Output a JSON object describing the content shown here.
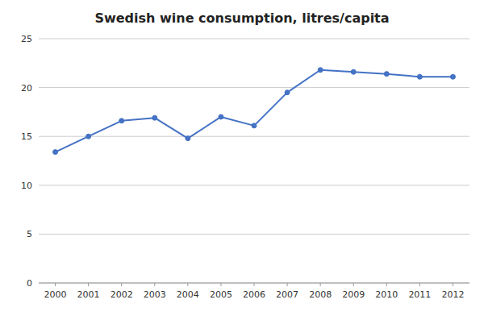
{
  "chart_data": {
    "type": "line",
    "title": "Swedish wine consumption, litres/capita",
    "x": [
      2000,
      2001,
      2002,
      2003,
      2004,
      2005,
      2006,
      2007,
      2008,
      2009,
      2010,
      2011,
      2012
    ],
    "values": [
      13.4,
      15.0,
      16.6,
      16.9,
      14.8,
      17.0,
      16.1,
      19.5,
      21.8,
      21.6,
      21.4,
      21.1,
      21.1
    ],
    "color": "#4472C4",
    "marker": "circle",
    "xlim": [
      1999.5,
      2012.5
    ],
    "xticks": [
      2000,
      2001,
      2002,
      2003,
      2004,
      2005,
      2006,
      2007,
      2008,
      2009,
      2010,
      2011,
      2012
    ],
    "ylim": [
      0,
      25
    ],
    "yticks": [
      0,
      5,
      10,
      15,
      20,
      25
    ],
    "grid": true
  }
}
